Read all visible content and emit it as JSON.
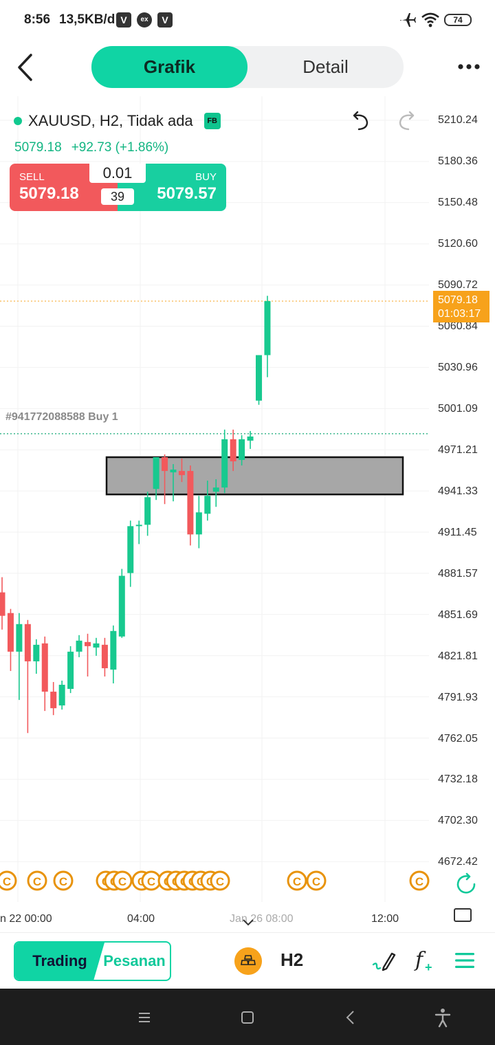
{
  "status_bar": {
    "time": "8:56",
    "network_speed": "13,5KB/d",
    "app_icons": [
      "V",
      "ex",
      "V"
    ],
    "battery": "74",
    "icons": [
      "airplane-icon",
      "wifi-icon",
      "battery-icon"
    ]
  },
  "header": {
    "tabs": [
      {
        "label": "Grafik",
        "active": true
      },
      {
        "label": "Detail",
        "active": false
      }
    ]
  },
  "symbol": {
    "name": "XAUUSD, H2, Tidak ada",
    "badge": "FB",
    "price": "5079.18",
    "change": "+92.73 (+1.86%)"
  },
  "trade_panel": {
    "sell_label": "SELL",
    "sell_price": "5079.18",
    "lot": "0.01",
    "spread": "39",
    "buy_label": "BUY",
    "buy_price": "5079.57"
  },
  "order_line": {
    "label": "#941772088588 Buy 1"
  },
  "y_axis": [
    "5210.24",
    "5180.36",
    "5150.48",
    "5120.60",
    "5090.72",
    "5060.84",
    "5030.96",
    "5001.09",
    "4971.21",
    "4941.33",
    "4911.45",
    "4881.57",
    "4851.69",
    "4821.81",
    "4791.93",
    "4762.05",
    "4732.18",
    "4702.30",
    "4672.42"
  ],
  "current_price_tag": {
    "price": "5079.18",
    "countdown": "01:03:17"
  },
  "x_axis": {
    "labels": [
      "n 22 00:00",
      "04:00",
      "Jan 26 08:00",
      "12:00"
    ]
  },
  "colors": {
    "accent": "#10d4a4",
    "bull": "#18c98f",
    "bear": "#f2595c",
    "price_line": "#f7a21b",
    "event_marker": "#e8930c"
  },
  "chart_data": {
    "type": "candlestick",
    "symbol": "XAUUSD",
    "timeframe": "H2",
    "ylim": [
      4672.42,
      5210.24
    ],
    "candles": [
      {
        "o": 4868,
        "h": 4879,
        "l": 4841,
        "c": 4851
      },
      {
        "o": 4853,
        "h": 4856,
        "l": 4811,
        "c": 4825
      },
      {
        "o": 4825,
        "h": 4853,
        "l": 4790,
        "c": 4845
      },
      {
        "o": 4845,
        "h": 4848,
        "l": 4766,
        "c": 4818
      },
      {
        "o": 4818,
        "h": 4834,
        "l": 4809,
        "c": 4830
      },
      {
        "o": 4831,
        "h": 4836,
        "l": 4782,
        "c": 4796
      },
      {
        "o": 4796,
        "h": 4803,
        "l": 4779,
        "c": 4784
      },
      {
        "o": 4786,
        "h": 4804,
        "l": 4783,
        "c": 4801
      },
      {
        "o": 4798,
        "h": 4829,
        "l": 4795,
        "c": 4825
      },
      {
        "o": 4825,
        "h": 4837,
        "l": 4821,
        "c": 4833
      },
      {
        "o": 4832,
        "h": 4838,
        "l": 4807,
        "c": 4829
      },
      {
        "o": 4828,
        "h": 4835,
        "l": 4822,
        "c": 4831
      },
      {
        "o": 4830,
        "h": 4835,
        "l": 4807,
        "c": 4813
      },
      {
        "o": 4812,
        "h": 4844,
        "l": 4802,
        "c": 4840
      },
      {
        "o": 4836,
        "h": 4885,
        "l": 4835,
        "c": 4880
      },
      {
        "o": 4882,
        "h": 4920,
        "l": 4872,
        "c": 4916
      },
      {
        "o": 4916,
        "h": 4920,
        "l": 4903,
        "c": 4917
      },
      {
        "o": 4917,
        "h": 4941,
        "l": 4909,
        "c": 4937
      },
      {
        "o": 4943,
        "h": 4966,
        "l": 4935,
        "c": 4966
      },
      {
        "o": 4966,
        "h": 4968,
        "l": 4932,
        "c": 4956
      },
      {
        "o": 4955,
        "h": 4961,
        "l": 4934,
        "c": 4957
      },
      {
        "o": 4956,
        "h": 4965,
        "l": 4948,
        "c": 4953
      },
      {
        "o": 4956,
        "h": 4960,
        "l": 4902,
        "c": 4910
      },
      {
        "o": 4910,
        "h": 4938,
        "l": 4900,
        "c": 4926
      },
      {
        "o": 4925,
        "h": 4949,
        "l": 4920,
        "c": 4938
      },
      {
        "o": 4941,
        "h": 4950,
        "l": 4930,
        "c": 4944
      },
      {
        "o": 4944,
        "h": 4986,
        "l": 4940,
        "c": 4979
      },
      {
        "o": 4979,
        "h": 4986,
        "l": 4956,
        "c": 4963
      },
      {
        "o": 4964,
        "h": 4982,
        "l": 4960,
        "c": 4979
      },
      {
        "o": 4978,
        "h": 4985,
        "l": 4972,
        "c": 4981
      },
      {
        "o": 5007,
        "h": 5040,
        "l": 5004,
        "c": 5040
      },
      {
        "o": 5040,
        "h": 5083,
        "l": 5024,
        "c": 5079.18
      }
    ],
    "order_line_price": 4983,
    "current_price": 5079.18,
    "zone": {
      "from": 4939,
      "to": 4966
    }
  }
}
